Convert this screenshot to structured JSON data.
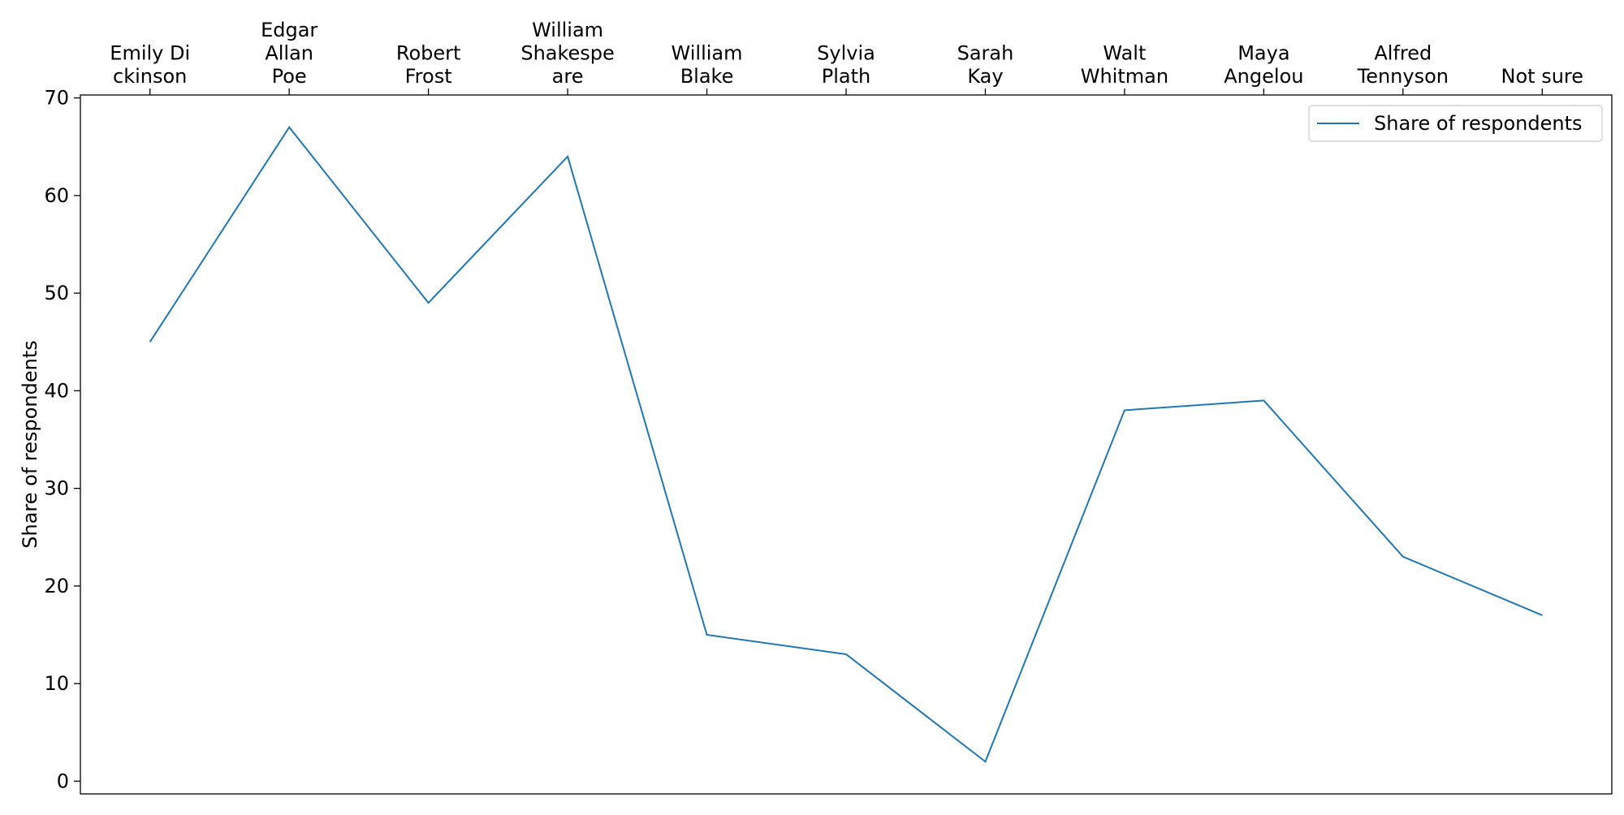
{
  "chart_data": {
    "type": "line",
    "categories": [
      "Emily Dickinson",
      "Edgar Allan Poe",
      "Robert Frost",
      "William Shakespeare",
      "William Blake",
      "Sylvia Plath",
      "Sarah Kay",
      "Walt Whitman",
      "Maya Angelou",
      "Alfred Tennyson",
      "Not sure"
    ],
    "category_label_lines": [
      [
        "Emily Di",
        "ckinson"
      ],
      [
        "Edgar",
        "Allan",
        "Poe"
      ],
      [
        "Robert",
        "Frost"
      ],
      [
        "William",
        "Shakespe",
        "are"
      ],
      [
        "William",
        "Blake"
      ],
      [
        "Sylvia",
        "Plath"
      ],
      [
        "Sarah",
        "Kay"
      ],
      [
        "Walt",
        "Whitman"
      ],
      [
        "Maya",
        "Angelou"
      ],
      [
        "Alfred",
        "Tennyson"
      ],
      [
        "Not sure"
      ]
    ],
    "series": [
      {
        "name": "Share of respondents",
        "values": [
          45,
          67,
          49,
          64,
          15,
          13,
          2,
          38,
          39,
          23,
          17
        ],
        "color": "#1f77b4"
      }
    ],
    "title": "",
    "xlabel": "",
    "ylabel": "Share of respondents",
    "ylim": [
      -1.3,
      70.3
    ],
    "yticks": [
      0,
      10,
      20,
      30,
      40,
      50,
      60,
      70
    ],
    "x_axis_position": "top",
    "grid": false,
    "legend_position": "top-right"
  }
}
